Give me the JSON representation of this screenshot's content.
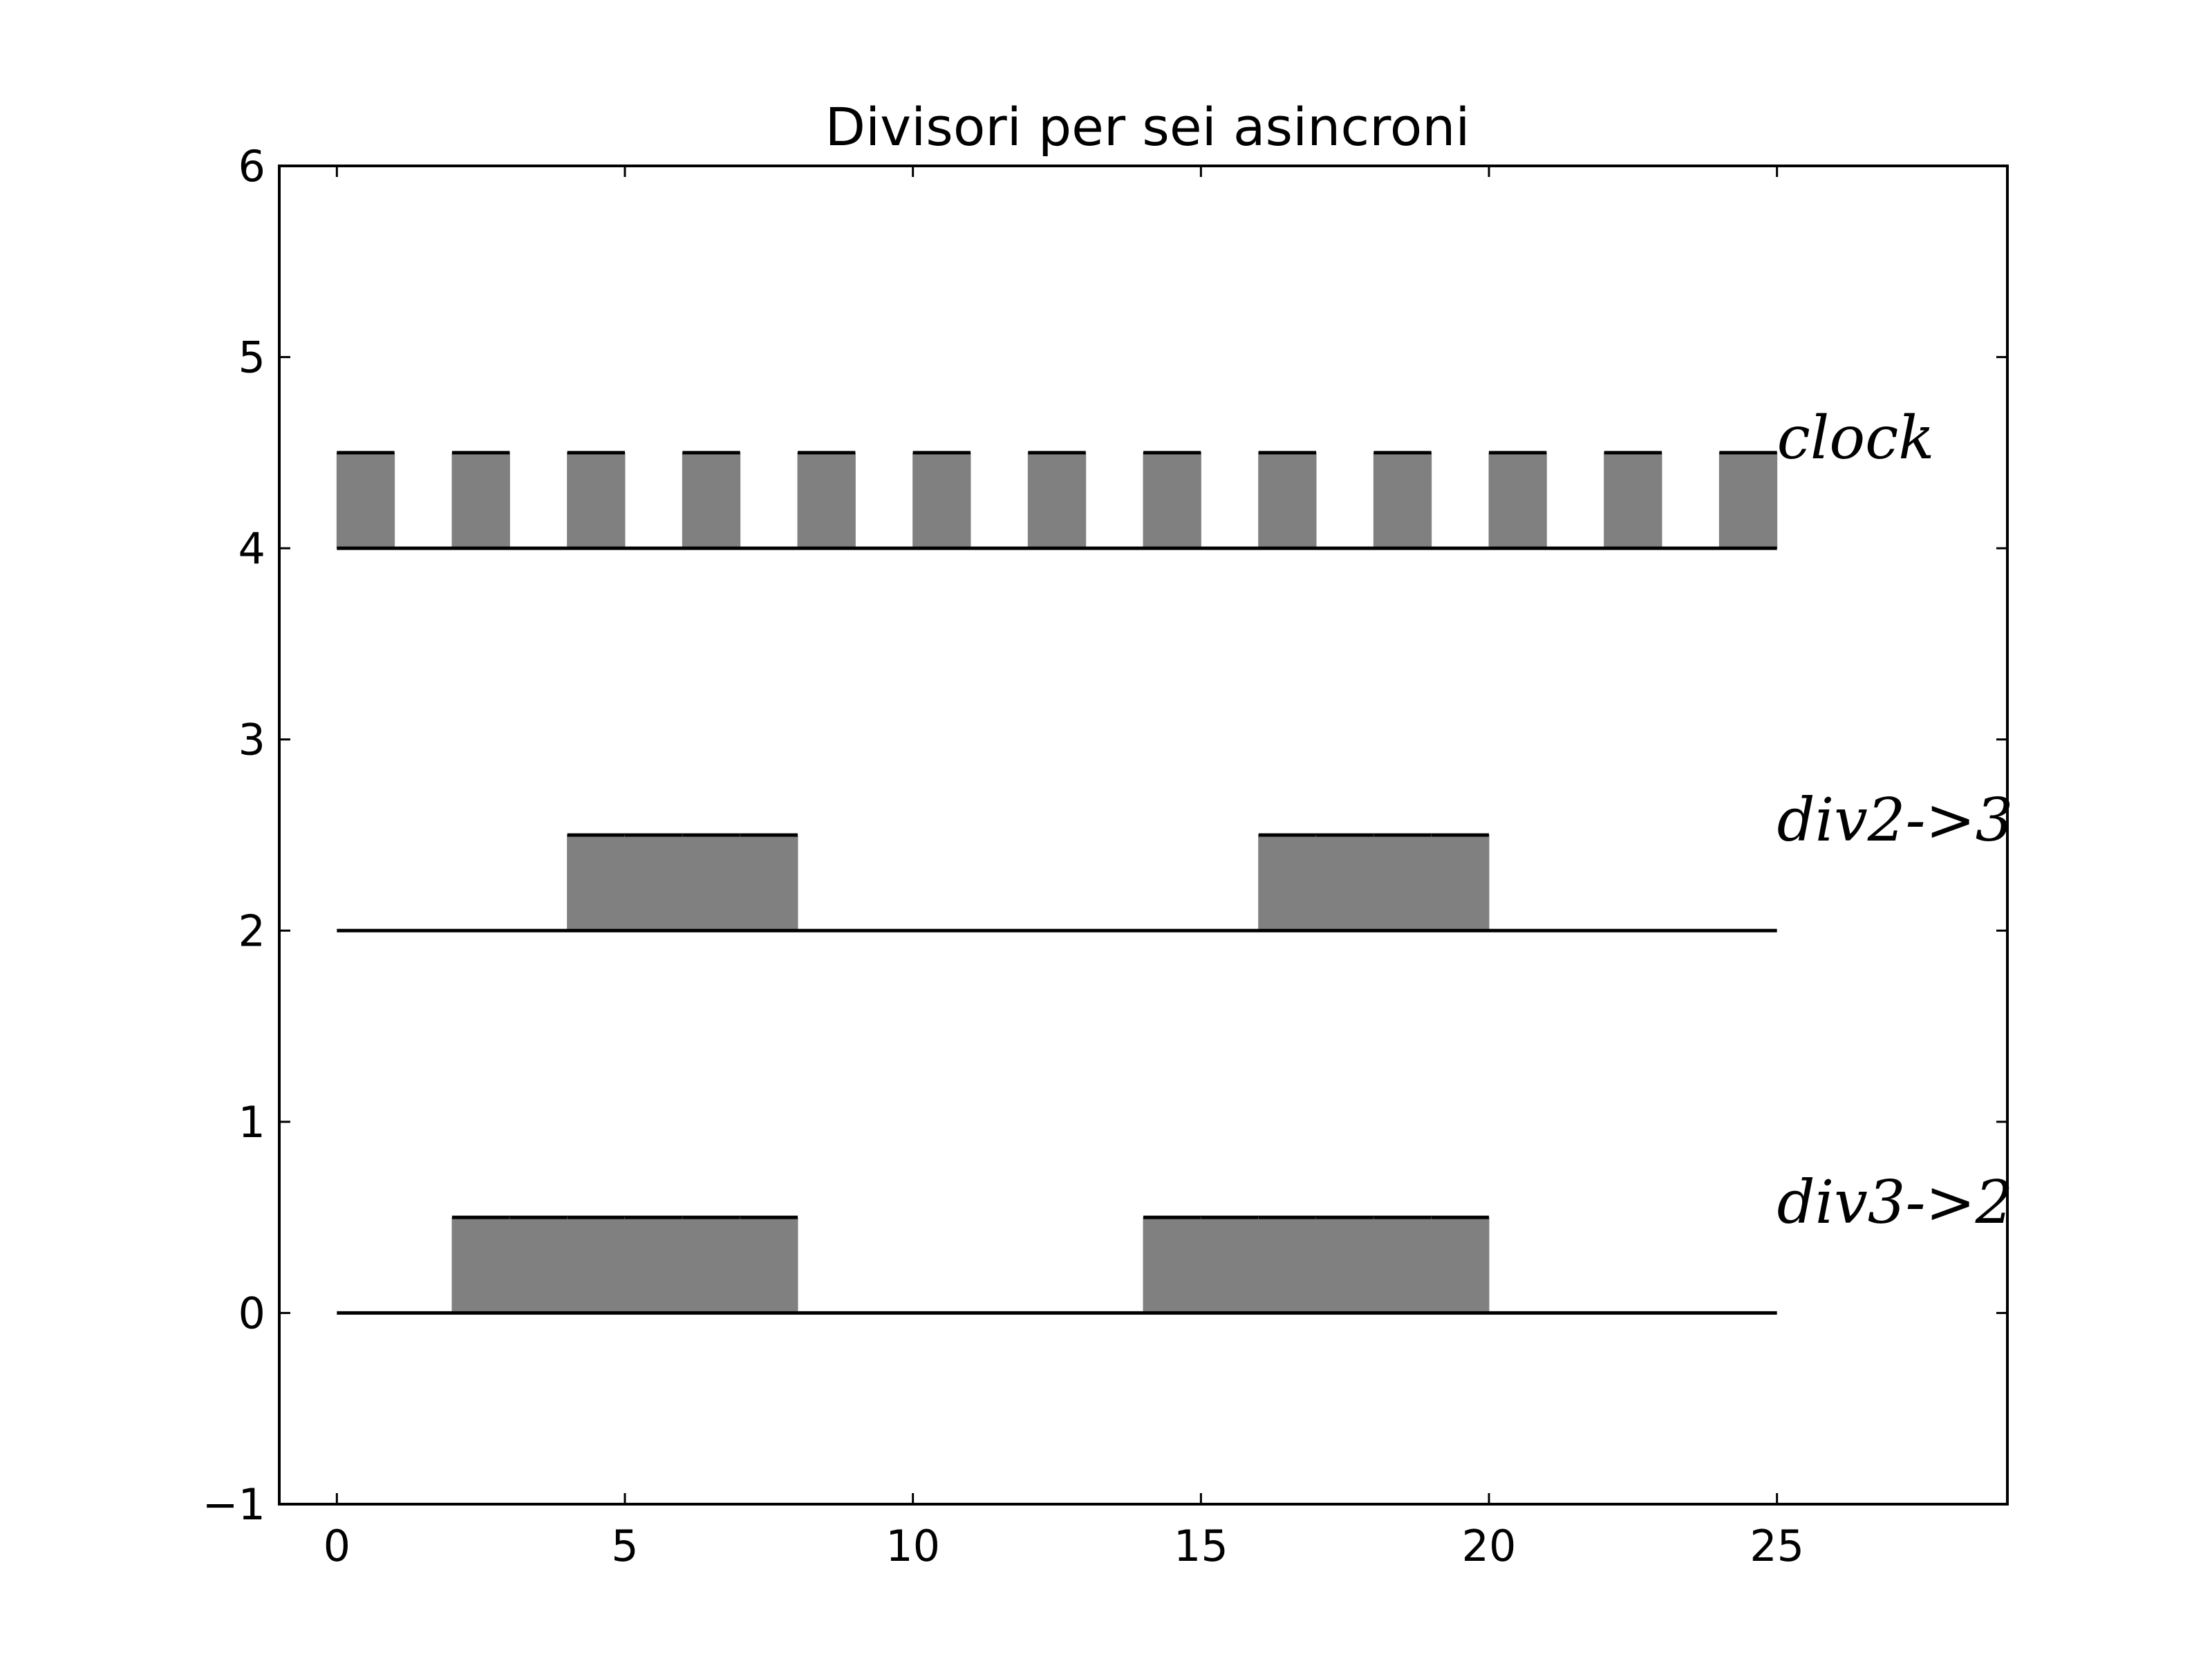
{
  "chart_data": {
    "type": "bar",
    "title": "Divisori per sei asincroni",
    "xlabel": "",
    "ylabel": "",
    "xlim": [
      -1,
      29
    ],
    "ylim": [
      -1,
      6
    ],
    "xticks": [
      0,
      5,
      10,
      15,
      20,
      25
    ],
    "yticks": [
      -1,
      0,
      1,
      2,
      3,
      4,
      5,
      6
    ],
    "xtick_labels": [
      "0",
      "5",
      "10",
      "15",
      "20",
      "25"
    ],
    "ytick_labels": [
      "−1",
      "0",
      "1",
      "2",
      "3",
      "4",
      "5",
      "6"
    ],
    "grid": false,
    "legend": "none",
    "bar_color": "#808080",
    "line_color": "#000000",
    "signals": [
      {
        "name": "clock",
        "label": "clock",
        "baseline": 4,
        "height": 0.5,
        "x_start": 0,
        "x_end": 25,
        "label_x": 25,
        "label_y": 4.5,
        "bars": [
          [
            0,
            1
          ],
          [
            2,
            3
          ],
          [
            4,
            5
          ],
          [
            6,
            7
          ],
          [
            8,
            9
          ],
          [
            10,
            11
          ],
          [
            12,
            13
          ],
          [
            14,
            15
          ],
          [
            16,
            17
          ],
          [
            18,
            19
          ],
          [
            20,
            21
          ],
          [
            22,
            23
          ],
          [
            24,
            25
          ]
        ]
      },
      {
        "name": "div2->3",
        "label": "div2->3",
        "baseline": 2,
        "height": 0.5,
        "x_start": 0,
        "x_end": 25,
        "label_x": 25,
        "label_y": 2.5,
        "bars": [
          [
            4,
            5
          ],
          [
            5,
            6
          ],
          [
            6,
            7
          ],
          [
            7,
            8
          ],
          [
            16,
            17
          ],
          [
            17,
            18
          ],
          [
            18,
            19
          ],
          [
            19,
            20
          ]
        ]
      },
      {
        "name": "div3->2",
        "label": "div3->2",
        "baseline": 0,
        "height": 0.5,
        "x_start": 0,
        "x_end": 25,
        "label_x": 25,
        "label_y": 0.5,
        "bars": [
          [
            2,
            3
          ],
          [
            3,
            4
          ],
          [
            4,
            5
          ],
          [
            5,
            6
          ],
          [
            6,
            7
          ],
          [
            7,
            8
          ],
          [
            14,
            15
          ],
          [
            15,
            16
          ],
          [
            16,
            17
          ],
          [
            17,
            18
          ],
          [
            18,
            19
          ],
          [
            19,
            20
          ]
        ]
      }
    ]
  }
}
